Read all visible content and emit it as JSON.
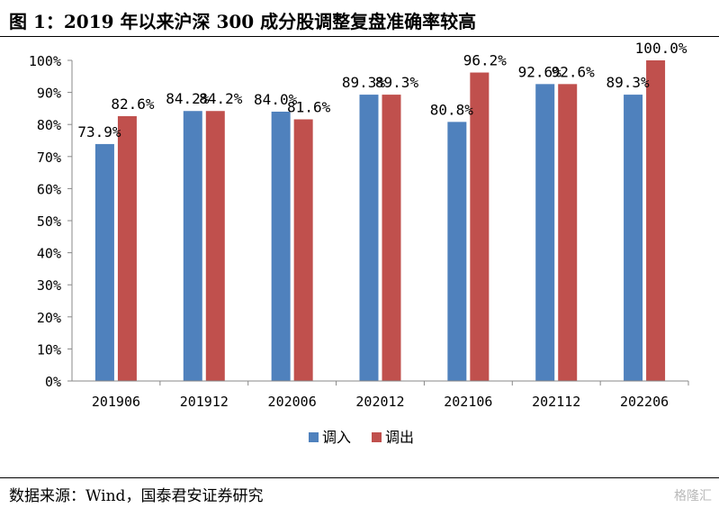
{
  "title": "图 1：2019 年以来沪深 300 成分股调整复盘准确率较高",
  "source": "数据来源：Wind，国泰君安证券研究",
  "watermark": "格隆汇",
  "chart_data": {
    "type": "bar",
    "categories": [
      "201906",
      "201912",
      "202006",
      "202012",
      "202106",
      "202112",
      "202206"
    ],
    "series": [
      {
        "name": "调入",
        "color": "#4f81bd",
        "values": [
          73.9,
          84.2,
          84.0,
          89.3,
          80.8,
          92.6,
          89.3
        ],
        "labels": [
          "73.9%",
          "84.2%",
          "84.0%",
          "89.3%",
          "80.8%",
          "92.6%",
          "89.3%"
        ]
      },
      {
        "name": "调出",
        "color": "#c0504d",
        "values": [
          82.6,
          84.2,
          81.6,
          89.3,
          96.2,
          92.6,
          100.0
        ],
        "labels": [
          "82.6%",
          "84.2%",
          "81.6%",
          "89.3%",
          "96.2%",
          "92.6%",
          "100.0%"
        ]
      }
    ],
    "yticks": [
      "0%",
      "10%",
      "20%",
      "30%",
      "40%",
      "50%",
      "60%",
      "70%",
      "80%",
      "90%",
      "100%"
    ],
    "ylim": [
      0,
      100
    ],
    "legend": "bottom",
    "grid": false
  }
}
